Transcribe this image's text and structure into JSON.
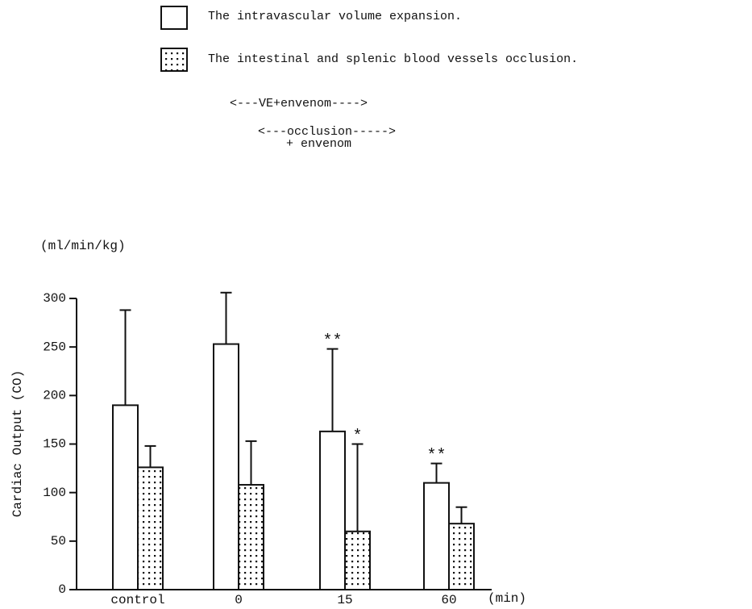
{
  "chart_data": {
    "type": "bar",
    "legend": [
      "The intravascular volume expansion.",
      "The intestinal and splenic blood vessels occlusion."
    ],
    "notes": [
      "<---VE+envenom---->",
      "<---occlusion----->",
      "+ envenom"
    ],
    "y_unit": "(ml/min/kg)",
    "ylabel": "Cardiac Output (CO)",
    "x_unit": "(min)",
    "categories": [
      "control",
      "0",
      "15",
      "60"
    ],
    "series": [
      {
        "name": "The intravascular volume expansion.",
        "color": "#ffffff",
        "pattern": "none",
        "values": [
          190,
          253,
          163,
          110
        ],
        "errors": [
          98,
          53,
          85,
          20
        ],
        "annotations": [
          null,
          null,
          "**",
          "**"
        ]
      },
      {
        "name": "The intestinal and splenic blood vessels occlusion.",
        "color": "#ffffff",
        "pattern": "dots",
        "values": [
          126,
          108,
          60,
          68
        ],
        "errors": [
          22,
          45,
          90,
          17
        ],
        "annotations": [
          null,
          null,
          "*",
          null
        ]
      }
    ],
    "ylim": [
      0,
      300
    ],
    "yticks": [
      0,
      50,
      100,
      150,
      200,
      250,
      300
    ]
  }
}
